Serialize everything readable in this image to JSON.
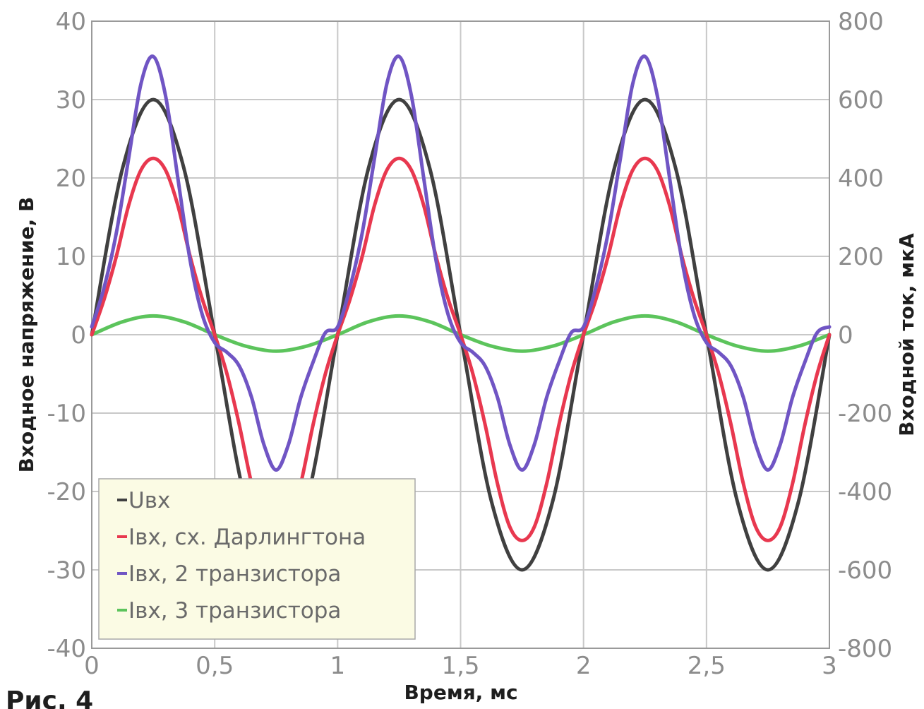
{
  "figure_caption": "Рис. 4",
  "chart_data": {
    "type": "line",
    "title": "",
    "xlabel": "Время, мс",
    "ylabel": "Входное напряжение, В",
    "y2label": "Входной ток, мкА",
    "xlim": [
      0,
      3
    ],
    "ylim": [
      -40,
      40
    ],
    "y2lim": [
      -800,
      800
    ],
    "x_ticks": [
      0,
      0.5,
      1,
      1.5,
      2,
      2.5,
      3
    ],
    "x_tick_labels": [
      "0",
      "0,5",
      "1",
      "1,5",
      "2",
      "2,5",
      "3"
    ],
    "y_ticks": [
      -40,
      -30,
      -20,
      -10,
      0,
      10,
      20,
      30,
      40
    ],
    "y_tick_labels": [
      "-40",
      "-30",
      "-20",
      "-10",
      "0",
      "10",
      "20",
      "30",
      "40"
    ],
    "y2_ticks": [
      -800,
      -600,
      -400,
      -200,
      0,
      200,
      400,
      600,
      800
    ],
    "y2_tick_labels": [
      "-800",
      "-600",
      "-400",
      "-200",
      "0",
      "200",
      "400",
      "600",
      "800"
    ],
    "grid": true,
    "legend_position": "bottom-left",
    "series": [
      {
        "name": "Uвх",
        "axis": "left",
        "color": "#404040",
        "x": [
          0,
          0.125,
          0.25,
          0.375,
          0.5,
          0.625,
          0.75,
          0.875,
          1,
          1.125,
          1.25,
          1.375,
          1.5,
          1.625,
          1.75,
          1.875,
          2,
          2.125,
          2.25,
          2.375,
          2.5,
          2.625,
          2.75,
          2.875,
          3
        ],
        "y": [
          0,
          21.2,
          30,
          21.2,
          0,
          -21.2,
          -30,
          -21.2,
          0,
          21.2,
          30,
          21.2,
          0,
          -21.2,
          -30,
          -21.2,
          0,
          21.2,
          30,
          21.2,
          0,
          -21.2,
          -30,
          -21.2,
          0
        ]
      },
      {
        "name": "Iвх, сх. Дарлингтона",
        "axis": "right",
        "color": "#e8384f",
        "x": [
          0,
          0.05,
          0.1,
          0.15,
          0.2,
          0.25,
          0.3,
          0.35,
          0.4,
          0.45,
          0.5,
          0.55,
          0.6,
          0.65,
          0.7,
          0.75,
          0.8,
          0.85,
          0.9,
          0.95,
          1,
          1.05,
          1.1,
          1.15,
          1.2,
          1.25,
          1.3,
          1.35,
          1.4,
          1.45,
          1.5,
          1.55,
          1.6,
          1.65,
          1.7,
          1.75,
          1.8,
          1.85,
          1.9,
          1.95,
          2,
          2.05,
          2.1,
          2.15,
          2.2,
          2.25,
          2.3,
          2.35,
          2.4,
          2.45,
          2.5,
          2.55,
          2.6,
          2.65,
          2.7,
          2.75,
          2.8,
          2.85,
          2.9,
          2.95,
          3
        ],
        "y": [
          0,
          90,
          200,
          330,
          420,
          450,
          420,
          330,
          200,
          90,
          0,
          -100,
          -230,
          -380,
          -490,
          -525,
          -490,
          -380,
          -230,
          -100,
          0,
          90,
          200,
          330,
          420,
          450,
          420,
          330,
          200,
          90,
          0,
          -100,
          -230,
          -380,
          -490,
          -525,
          -490,
          -380,
          -230,
          -100,
          0,
          90,
          200,
          330,
          420,
          450,
          420,
          330,
          200,
          90,
          0,
          -100,
          -230,
          -380,
          -490,
          -525,
          -490,
          -380,
          -230,
          -100,
          0
        ]
      },
      {
        "name": "Iвх, 2 транзистора",
        "axis": "right",
        "color": "#7055c4",
        "x": [
          0,
          0.05,
          0.1,
          0.15,
          0.2,
          0.25,
          0.3,
          0.35,
          0.4,
          0.45,
          0.5,
          0.55,
          0.6,
          0.65,
          0.7,
          0.75,
          0.8,
          0.85,
          0.9,
          0.95,
          1,
          1.05,
          1.1,
          1.15,
          1.2,
          1.25,
          1.3,
          1.35,
          1.4,
          1.45,
          1.5,
          1.55,
          1.6,
          1.65,
          1.7,
          1.75,
          1.8,
          1.85,
          1.9,
          1.95,
          2,
          2.05,
          2.1,
          2.15,
          2.2,
          2.25,
          2.3,
          2.35,
          2.4,
          2.45,
          2.5,
          2.55,
          2.6,
          2.65,
          2.7,
          2.75,
          2.8,
          2.85,
          2.9,
          2.95,
          3
        ],
        "y": [
          20,
          120,
          260,
          450,
          640,
          710,
          610,
          400,
          190,
          50,
          -20,
          -45,
          -80,
          -160,
          -280,
          -345,
          -280,
          -160,
          -70,
          5,
          20,
          120,
          260,
          450,
          640,
          710,
          610,
          400,
          190,
          50,
          -20,
          -45,
          -80,
          -160,
          -280,
          -345,
          -280,
          -160,
          -70,
          5,
          20,
          120,
          260,
          450,
          640,
          710,
          610,
          400,
          190,
          50,
          -20,
          -45,
          -80,
          -160,
          -280,
          -345,
          -280,
          -160,
          -70,
          5,
          20
        ]
      },
      {
        "name": "Iвх, 3 транзистора",
        "axis": "right",
        "color": "#5cc45c",
        "x": [
          0,
          0.125,
          0.25,
          0.375,
          0.5,
          0.625,
          0.75,
          0.875,
          1,
          1.125,
          1.25,
          1.375,
          1.5,
          1.625,
          1.75,
          1.875,
          2,
          2.125,
          2.25,
          2.375,
          2.5,
          2.625,
          2.75,
          2.875,
          3
        ],
        "y": [
          0,
          33,
          48,
          33,
          0,
          -29,
          -42,
          -29,
          0,
          33,
          48,
          33,
          0,
          -29,
          -42,
          -29,
          0,
          33,
          48,
          33,
          0,
          -29,
          -42,
          -29,
          0
        ]
      }
    ]
  }
}
